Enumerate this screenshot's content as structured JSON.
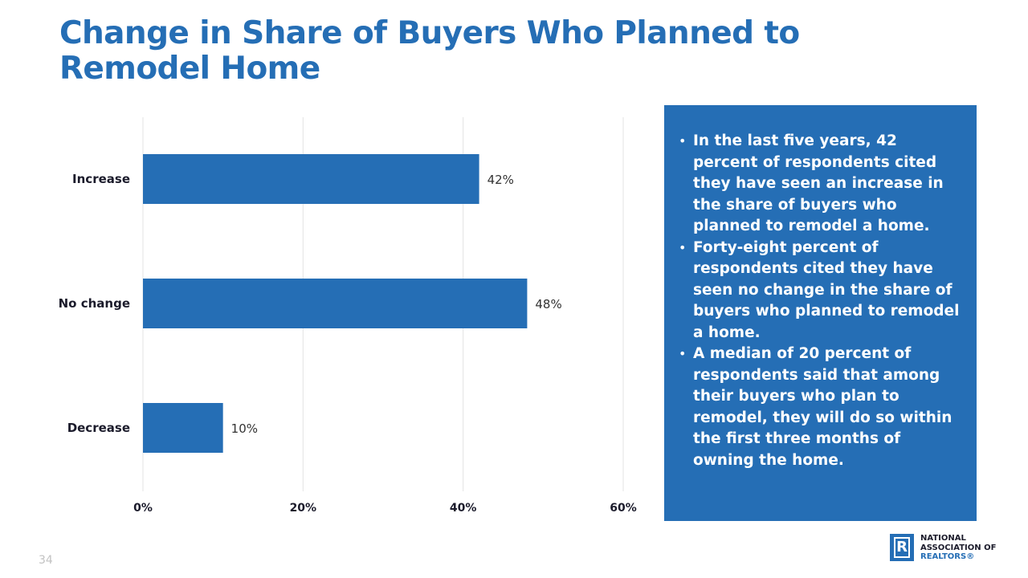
{
  "slide": {
    "title": "Change in Share of Buyers Who Planned to Remodel Home",
    "page_number": "34"
  },
  "chart_data": {
    "type": "bar",
    "orientation": "horizontal",
    "categories": [
      "Increase",
      "No change",
      "Decrease"
    ],
    "values": [
      42,
      48,
      10
    ],
    "value_labels": [
      "42%",
      "48%",
      "10%"
    ],
    "xlim": [
      0,
      60
    ],
    "x_ticks": [
      0,
      20,
      40,
      60
    ],
    "x_tick_labels": [
      "0%",
      "20%",
      "40%",
      "60%"
    ],
    "grid": true,
    "legend": "none",
    "bar_color": "#256EB5"
  },
  "info_box": {
    "bullets": [
      "In the last five years, 42 percent of respondents cited they have seen an increase in the share of buyers who planned to remodel a home.",
      "Forty-eight percent of respondents cited they have seen no change in the share of buyers who planned to remodel a home.",
      "A median of 20 percent of respondents said that among their buyers who plan to remodel, they will do so within the first three months of owning the home."
    ]
  },
  "logo": {
    "mark": "R",
    "line1": "NATIONAL",
    "line2": "ASSOCIATION OF",
    "line3": "REALTORS®"
  },
  "colors": {
    "accent": "#256EB5",
    "text_dark": "#1b1b2b",
    "page_number": "#c2c2c2"
  }
}
